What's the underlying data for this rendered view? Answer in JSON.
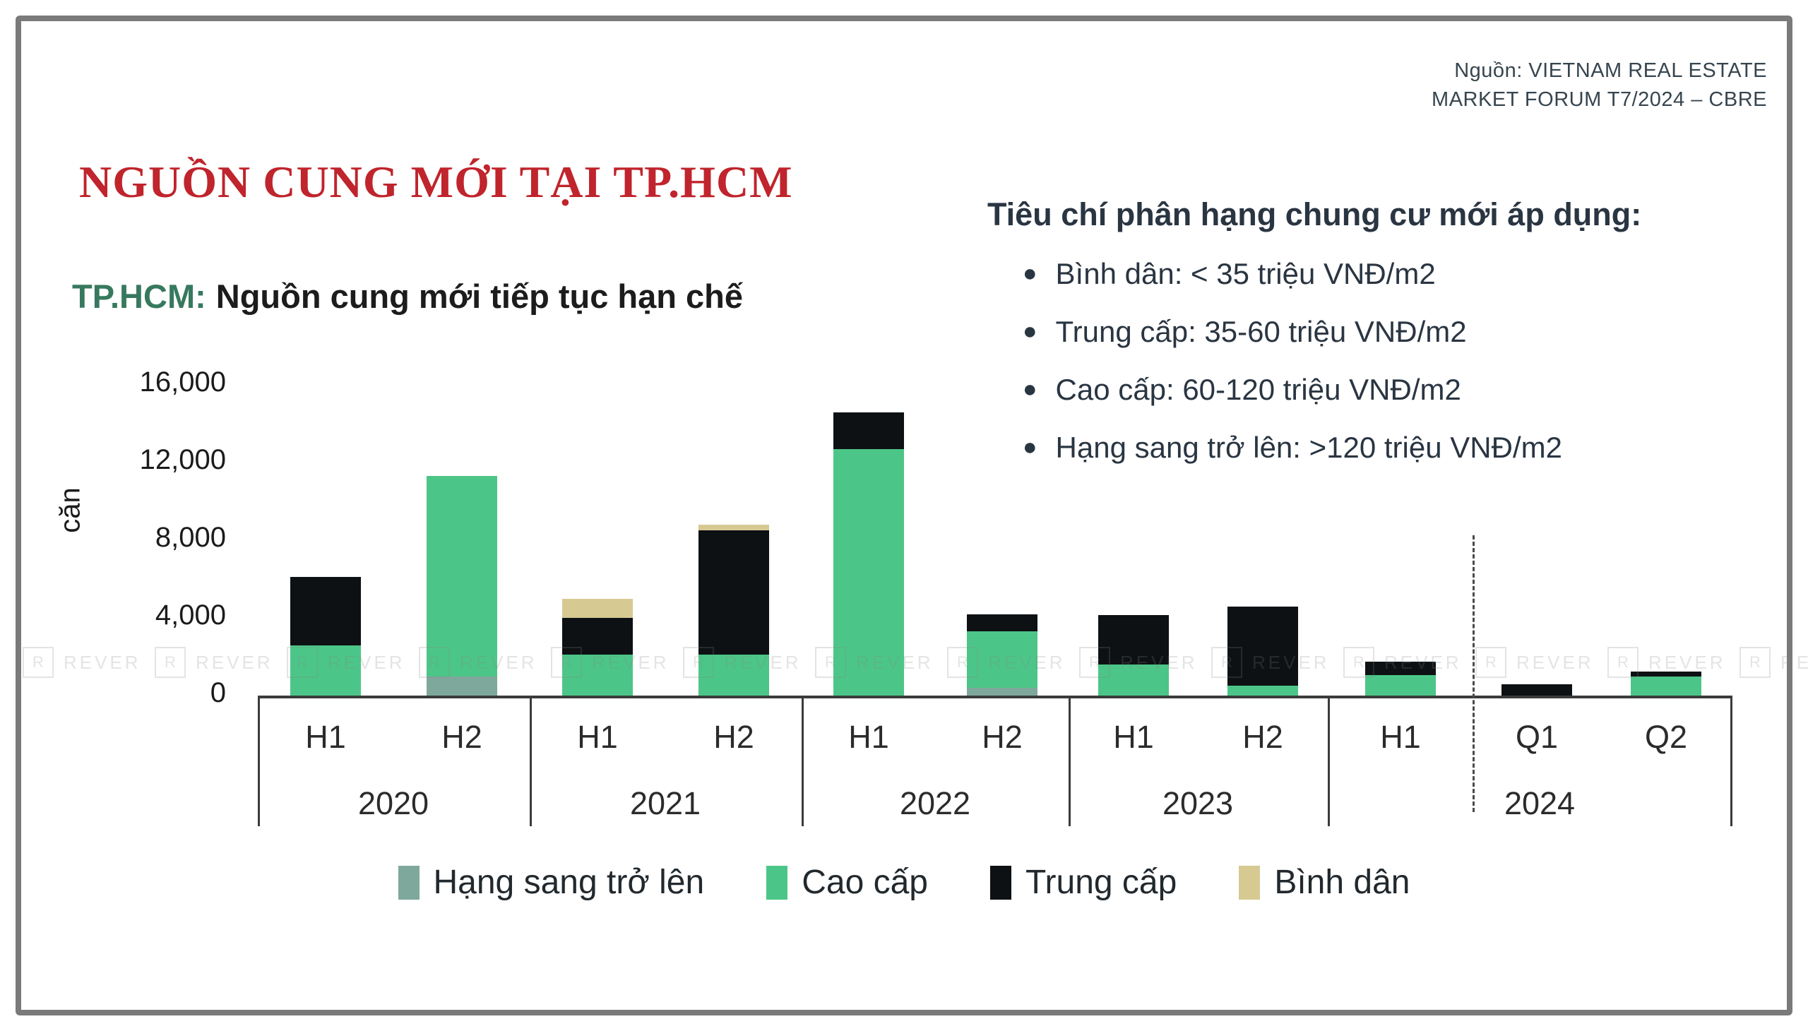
{
  "source": {
    "line1": "Nguồn: VIETNAM REAL ESTATE",
    "line2": "MARKET FORUM T7/2024 – CBRE"
  },
  "title": "NGUỒN CUNG MỚI TẠI TP.HCM",
  "subtitle": {
    "prefix": "TP.HCM:",
    "text": "Nguồn cung mới tiếp tục hạn chế"
  },
  "criteria": {
    "heading": "Tiêu chí phân hạng chung cư mới áp dụng:",
    "items": [
      "Bình dân: < 35 triệu VNĐ/m2",
      "Trung cấp: 35-60 triệu VNĐ/m2",
      "Cao cấp: 60-120 triệu VNĐ/m2",
      "Hạng sang trở lên: >120 triệu VNĐ/m2"
    ]
  },
  "watermark": {
    "logo": "R",
    "text": "REVER"
  },
  "chart_data": {
    "type": "bar",
    "stacked": true,
    "title": "TP.HCM: Nguồn cung mới tiếp tục hạn chế",
    "xlabel": "",
    "ylabel": "căn",
    "ylim": [
      0,
      16000
    ],
    "grid": false,
    "yticks": [
      {
        "value": 0,
        "label": "0"
      },
      {
        "value": 4000,
        "label": "4,000"
      },
      {
        "value": 8000,
        "label": "8,000"
      },
      {
        "value": 12000,
        "label": "12,000"
      },
      {
        "value": 16000,
        "label": "16,000"
      }
    ],
    "categories": [
      "H1",
      "H2",
      "H1",
      "H2",
      "H1",
      "H2",
      "H1",
      "H2",
      "H1",
      "Q1",
      "Q2"
    ],
    "group_labels": [
      {
        "label": "2020",
        "categories": [
          0,
          1
        ]
      },
      {
        "label": "2021",
        "categories": [
          2,
          3
        ]
      },
      {
        "label": "2022",
        "categories": [
          4,
          5
        ]
      },
      {
        "label": "2023",
        "categories": [
          6,
          7
        ]
      },
      {
        "label": "2024",
        "categories": [
          8,
          9,
          10
        ]
      }
    ],
    "dashed_divider_after_category_index": 8,
    "series": [
      {
        "name": "Hạng sang trở lên",
        "color": "#7fa89c",
        "values": [
          0,
          1000,
          0,
          0,
          0,
          400,
          0,
          0,
          0,
          0,
          0
        ]
      },
      {
        "name": "Cao cấp",
        "color": "#4cc688",
        "values": [
          2600,
          10300,
          2100,
          2100,
          12700,
          2900,
          1600,
          500,
          1050,
          0,
          1000
        ]
      },
      {
        "name": "Trung cấp",
        "color": "#0d1114",
        "values": [
          3500,
          0,
          1900,
          6400,
          1900,
          900,
          2550,
          4100,
          700,
          600,
          250
        ]
      },
      {
        "name": "Bình dân",
        "color": "#d6ca92",
        "values": [
          0,
          0,
          1000,
          300,
          0,
          0,
          0,
          0,
          0,
          0,
          0
        ]
      }
    ],
    "legend": {
      "position": "bottom",
      "entries": [
        "Hạng sang trở lên",
        "Cao cấp",
        "Trung cấp",
        "Bình dân"
      ]
    }
  }
}
